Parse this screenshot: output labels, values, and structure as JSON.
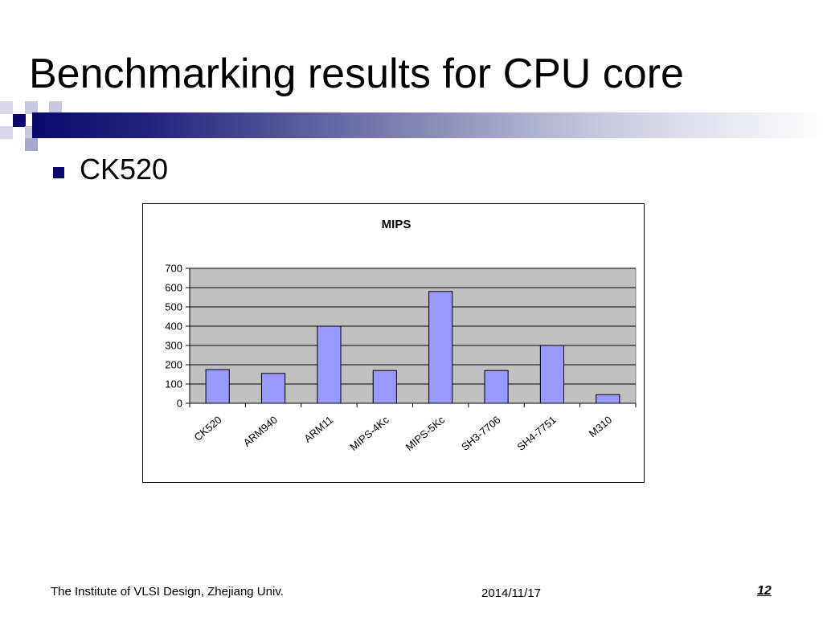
{
  "slide": {
    "title": "Benchmarking results for CPU core",
    "bullet": "CK520",
    "colors": {
      "band_dark": "#0a0a6e",
      "band_light": "#ffffff",
      "bar_fill": "#9999ff",
      "plot_bg": "#c0c0c0"
    }
  },
  "chart_data": {
    "type": "bar",
    "title": "MIPS",
    "xlabel": "",
    "ylabel": "",
    "categories": [
      "CK520",
      "ARM940",
      "ARM11",
      "MIPS-4Kc",
      "MIPS-5Kc",
      "SH3-7706",
      "SH4-7751",
      "M310"
    ],
    "values": [
      175,
      155,
      400,
      170,
      580,
      170,
      300,
      45
    ],
    "ylim": [
      0,
      700
    ],
    "yticks": [
      0,
      100,
      200,
      300,
      400,
      500,
      600,
      700
    ],
    "grid": true,
    "legend": "none"
  },
  "footer": {
    "institute": "The Institute of VLSI Design, Zhejiang Univ.",
    "date": "2014/11/17",
    "page": "12"
  }
}
